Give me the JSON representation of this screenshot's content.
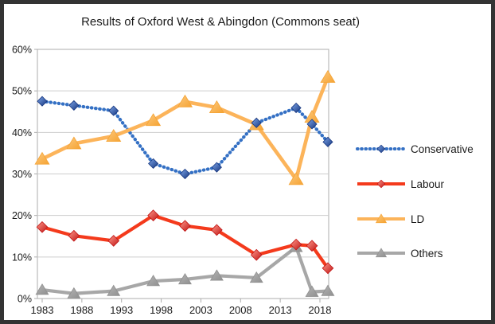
{
  "chart_data": {
    "type": "line",
    "title": "Results of Oxford West & Abingdon (Commons seat)",
    "xlabel": "",
    "ylabel": "",
    "x": [
      1983,
      1987,
      1992,
      1997,
      2001,
      2005,
      2010,
      2015,
      2017,
      2019
    ],
    "series": [
      {
        "name": "Conservative",
        "values": [
          47.5,
          46.5,
          45.2,
          32.5,
          30.0,
          31.6,
          42.3,
          45.9,
          42.0,
          37.7
        ],
        "color": "#3470C4",
        "marker": "diamond",
        "marker_light": "#7EA6E9",
        "marker_dark": "#15357E",
        "line_style": "dotted"
      },
      {
        "name": "Labour",
        "values": [
          17.2,
          15.1,
          13.9,
          20.0,
          17.5,
          16.5,
          10.5,
          13.0,
          12.7,
          7.3
        ],
        "color": "#F43A1C",
        "marker": "diamond",
        "marker_light": "#FF9A8C",
        "marker_dark": "#C01414",
        "line_style": "solid"
      },
      {
        "name": "LD",
        "values": [
          33.6,
          37.3,
          39.1,
          42.9,
          47.4,
          46.0,
          41.9,
          28.7,
          43.7,
          53.3
        ],
        "color": "#FCB45A",
        "marker": "triangle",
        "marker_light": "#FDC97E",
        "marker_dark": "#F5A333",
        "line_style": "solid"
      },
      {
        "name": "Others",
        "values": [
          2.1,
          1.2,
          1.8,
          4.2,
          4.6,
          5.5,
          5.0,
          12.4,
          1.6,
          1.8
        ],
        "color": "#A7A7A7",
        "marker": "triangle",
        "marker_light": "#B5B5B5",
        "marker_dark": "#8F8F8F",
        "line_style": "solid"
      }
    ],
    "x_tick_labels": [
      "1983",
      "1988",
      "1993",
      "1998",
      "2003",
      "2008",
      "2013",
      "2018"
    ],
    "x_tick_years": [
      1983,
      1988,
      1993,
      1998,
      2003,
      2008,
      2013,
      2018
    ],
    "y_ticks": [
      0,
      10,
      20,
      30,
      40,
      50,
      60
    ],
    "y_tick_suffix": "%",
    "ylim": [
      0,
      60
    ],
    "xlim": [
      1982.4,
      2019.1
    ],
    "grid": "horizontal",
    "legend_position": "right",
    "grid_color": "#CDCDCD",
    "axis_color": "#ADADAD",
    "text_color": "#1a1a1a",
    "frame_border_color": "#333333",
    "background_color": "#FFFFFF"
  }
}
